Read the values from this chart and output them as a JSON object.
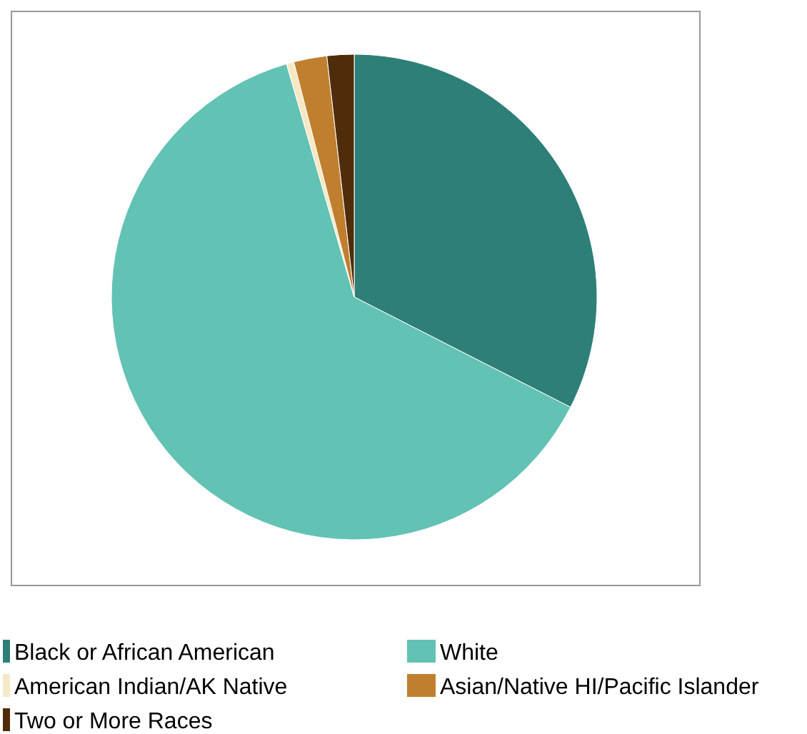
{
  "chart_data": {
    "type": "pie",
    "categories": [
      "Black or African American",
      "White",
      "American Indian/AK Native",
      "Asian/Native HI/Pacific Islander",
      "Two or More Races"
    ],
    "values": [
      32.5,
      63,
      0.5,
      2.2,
      1.8
    ],
    "colors": [
      "#2e7f78",
      "#62c2b4",
      "#f5e8c4",
      "#c07f2e",
      "#4f2d0b"
    ],
    "legend": "bottom"
  }
}
